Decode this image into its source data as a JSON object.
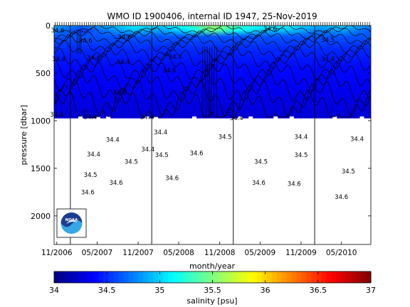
{
  "chart_data": {
    "type": "heatmap",
    "title": "WMO ID 1900406, internal ID 1947, 25-Nov-2019",
    "xlabel": "month/year",
    "ylabel": "pressure [dbar]",
    "xlim": [
      "2006-10-20",
      "2010-09-10"
    ],
    "ylim": [
      2300,
      0
    ],
    "yticks": [
      0,
      500,
      1000,
      1500,
      2000
    ],
    "ytick_labels": [
      "0",
      "500",
      "1000",
      "1500",
      "2000"
    ],
    "xticks": [
      "2006-11-01",
      "2007-05-01",
      "2007-11-01",
      "2008-05-01",
      "2008-11-01",
      "2009-05-01",
      "2009-11-01",
      "2010-05-01"
    ],
    "xtick_labels": [
      "11/2006",
      "05/2007",
      "11/2007",
      "05/2008",
      "11/2008",
      "05/2009",
      "11/2009",
      "05/2010"
    ],
    "year_lines": [
      "2007-01-01",
      "2008-01-01",
      "2009-01-01",
      "2010-01-01"
    ],
    "profile_depth_dbar": 975,
    "profile_depth_dips": [
      {
        "t": "2007-02-15",
        "p": 955
      },
      {
        "t": "2007-05-05",
        "p": 955
      },
      {
        "t": "2007-06-20",
        "p": 955
      },
      {
        "t": "2007-12-10",
        "p": 955
      },
      {
        "t": "2008-01-20",
        "p": 955
      },
      {
        "t": "2008-07-10",
        "p": 955
      },
      {
        "t": "2009-02-01",
        "p": 955
      },
      {
        "t": "2009-03-20",
        "p": 955
      },
      {
        "t": "2009-07-10",
        "p": 955
      },
      {
        "t": "2009-09-20",
        "p": 955
      },
      {
        "t": "2010-04-01",
        "p": 955
      },
      {
        "t": "2010-08-01",
        "p": 955
      }
    ],
    "contour_depths_dbar": [
      40,
      80,
      130,
      190,
      260,
      340,
      430,
      530,
      640,
      760,
      880
    ],
    "surface_max_salinity_psu": [
      {
        "t": "2006-11-01",
        "s": 34.9
      },
      {
        "t": "2007-03-01",
        "s": 34.7
      },
      {
        "t": "2007-06-01",
        "s": 34.9
      },
      {
        "t": "2007-10-01",
        "s": 35.1
      },
      {
        "t": "2008-02-01",
        "s": 35.0
      },
      {
        "t": "2008-06-01",
        "s": 35.2
      },
      {
        "t": "2008-09-01",
        "s": 35.6
      },
      {
        "t": "2008-12-01",
        "s": 35.3
      },
      {
        "t": "2009-04-01",
        "s": 35.1
      },
      {
        "t": "2009-08-01",
        "s": 35.1
      },
      {
        "t": "2010-01-01",
        "s": 34.9
      },
      {
        "t": "2010-05-01",
        "s": 35.0
      },
      {
        "t": "2010-09-01",
        "s": 34.8
      }
    ],
    "contour_labels": [
      {
        "t": "2006-11-05",
        "p": 50,
        "text": "34.6"
      },
      {
        "t": "2007-03-10",
        "p": 155,
        "text": "34.6"
      },
      {
        "t": "2007-04-15",
        "p": 335,
        "text": "34.4"
      },
      {
        "t": "2006-11-10",
        "p": 350,
        "text": "34.4"
      },
      {
        "t": "2007-09-01",
        "p": 120,
        "text": "34.6"
      },
      {
        "t": "2007-08-25",
        "p": 380,
        "text": "34.4"
      },
      {
        "t": "2007-08-10",
        "p": 700,
        "text": "34.6"
      },
      {
        "t": "2008-04-15",
        "p": 330,
        "text": "34.4"
      },
      {
        "t": "2008-03-20",
        "p": 470,
        "text": "34.6"
      },
      {
        "t": "2009-06-15",
        "p": 35,
        "text": "34.6"
      },
      {
        "t": "2010-03-01",
        "p": 150,
        "text": "34.5"
      },
      {
        "t": "2010-03-01",
        "p": 350,
        "text": "34.4"
      },
      {
        "t": "2006-11-01",
        "p": 935,
        "text": "34.4"
      },
      {
        "t": "2007-04-01",
        "p": 960,
        "text": "34.4"
      },
      {
        "t": "2007-12-10",
        "p": 960,
        "text": "34.4"
      },
      {
        "t": "2009-01-15",
        "p": 970,
        "text": "34.4"
      }
    ],
    "deep_values": [
      {
        "t": "2007-07-10",
        "p": 1200,
        "text": "34.4"
      },
      {
        "t": "2007-04-15",
        "p": 1350,
        "text": "34.4"
      },
      {
        "t": "2007-04-01",
        "p": 1570,
        "text": "34.5"
      },
      {
        "t": "2007-03-20",
        "p": 1750,
        "text": "34.6"
      },
      {
        "t": "2007-07-25",
        "p": 1650,
        "text": "34.6"
      },
      {
        "t": "2007-10-01",
        "p": 1430,
        "text": "34.5"
      },
      {
        "t": "2007-12-15",
        "p": 1300,
        "text": "34.4"
      },
      {
        "t": "2008-02-10",
        "p": 1120,
        "text": "34.4"
      },
      {
        "t": "2008-02-15",
        "p": 1360,
        "text": "34.5"
      },
      {
        "t": "2008-04-01",
        "p": 1600,
        "text": "34.6"
      },
      {
        "t": "2008-07-20",
        "p": 1340,
        "text": "34.6"
      },
      {
        "t": "2008-11-25",
        "p": 1170,
        "text": "34.5"
      },
      {
        "t": "2009-05-05",
        "p": 1430,
        "text": "34.5"
      },
      {
        "t": "2009-04-25",
        "p": 1650,
        "text": "34.6"
      },
      {
        "t": "2009-10-01",
        "p": 1660,
        "text": "34.6"
      },
      {
        "t": "2009-11-01",
        "p": 1170,
        "text": "34.4"
      },
      {
        "t": "2009-11-01",
        "p": 1360,
        "text": "34.5"
      },
      {
        "t": "2010-06-01",
        "p": 1530,
        "text": "34.5"
      },
      {
        "t": "2010-05-01",
        "p": 1800,
        "text": "34.6"
      },
      {
        "t": "2010-07-10",
        "p": 1190,
        "text": "34.4"
      }
    ],
    "colorbar": {
      "label": "salinity [psu]",
      "range": [
        34,
        37
      ],
      "ticks": [
        "34",
        "34.5",
        "35",
        "35.5",
        "36",
        "36.5",
        "37"
      ]
    }
  },
  "logo": {
    "text": "NOAA",
    "colors": {
      "top": "#1a3f8f",
      "bottom": "#35a6e6",
      "ring": "#ffffff"
    }
  }
}
